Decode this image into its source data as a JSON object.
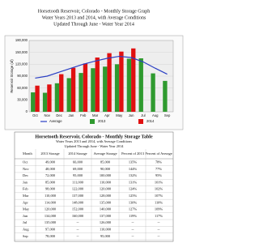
{
  "header": {
    "title": "Horsetooth Reservoir, Colorado - Monthly Storage Graph",
    "subtitle": "Water Years 2013 and 2014, with Average Conditions",
    "note": "Updated Through June - Water Year 2014"
  },
  "chart_data": {
    "type": "combo",
    "y_label": "Reservoir Storage (af)",
    "categories": [
      "Oct",
      "Nov",
      "Dec",
      "Jan",
      "Feb",
      "Mar",
      "Apr",
      "May",
      "Jun",
      "Jul",
      "Aug",
      "Sep"
    ],
    "series": [
      {
        "name": "Average",
        "type": "line",
        "color": "#2a3fc4",
        "values": [
          85000,
          90000,
          100000,
          110000,
          120000,
          128000,
          135000,
          140000,
          137000,
          126000,
          110000,
          95000
        ]
      },
      {
        "name": "2013",
        "type": "bar",
        "color": "#2f9a2f",
        "values": [
          49000,
          48000,
          72000,
          85000,
          98000,
          110000,
          114000,
          120000,
          134000,
          135000,
          97000,
          78000
        ]
      },
      {
        "name": "2014",
        "type": "bar",
        "color": "#e01010",
        "values": [
          66000,
          69000,
          95000,
          111000,
          122000,
          137000,
          148000,
          152000,
          160000,
          null,
          null,
          null
        ]
      }
    ],
    "ylim": [
      0,
      180000
    ],
    "yticks": [
      0,
      {
        "value": 30000,
        "label": "30,000"
      },
      {
        "value": 60000,
        "label": "60,000"
      },
      {
        "value": 90000,
        "label": "90,000"
      },
      {
        "value": 120000,
        "label": "120,000"
      },
      {
        "value": 150000,
        "label": "150,000"
      },
      {
        "value": 180000,
        "label": "180,000"
      }
    ],
    "grid": true,
    "legend": "bottom"
  },
  "table": {
    "title": "Horsetooth Reservoir, Colorado - Monthly Storage Table",
    "subtitle": "Water Years 2013 and 2014, with Average Conditions",
    "note": "Updated Through June - Water Year 2014",
    "columns": [
      "Month",
      "2013 Storage",
      "2014 Storage",
      "Average Storage",
      "Percent of 2013",
      "Percent of Average"
    ],
    "rows": [
      [
        "Oct",
        "49,000",
        "66,000",
        "85,000",
        "135%",
        "78%"
      ],
      [
        "Nov",
        "48,000",
        "69,000",
        "90,000",
        "144%",
        "77%"
      ],
      [
        "Dec",
        "72,000",
        "95,000",
        "100,000",
        "132%",
        "95%"
      ],
      [
        "Jan",
        "85,000",
        "111,000",
        "110,000",
        "131%",
        "101%"
      ],
      [
        "Feb",
        "98,000",
        "122,000",
        "120,000",
        "124%",
        "102%"
      ],
      [
        "Mar",
        "110,000",
        "137,000",
        "128,000",
        "125%",
        "107%"
      ],
      [
        "Apr",
        "114,000",
        "148,000",
        "135,000",
        "130%",
        "110%"
      ],
      [
        "May",
        "120,000",
        "152,000",
        "140,000",
        "127%",
        "109%"
      ],
      [
        "Jun",
        "134,000",
        "160,000",
        "137,000",
        "119%",
        "117%"
      ],
      [
        "Jul",
        "135,000",
        "--",
        "126,000",
        "--",
        "--"
      ],
      [
        "Aug",
        "97,000",
        "--",
        "110,000",
        "--",
        "--"
      ],
      [
        "Sep",
        "78,000",
        "--",
        "95,000",
        "--",
        "--"
      ]
    ]
  }
}
